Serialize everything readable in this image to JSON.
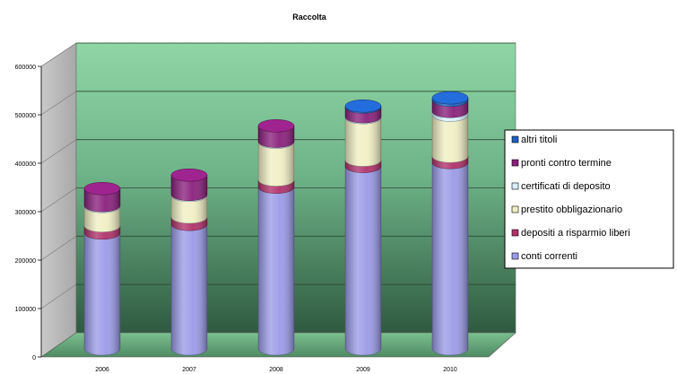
{
  "chart_data": {
    "type": "bar",
    "stacked": true,
    "style": "3d-cylinder",
    "title": "Raccolta",
    "xlabel": "",
    "ylabel": "",
    "ylim": [
      0,
      600000
    ],
    "yticks": [
      0,
      100000,
      200000,
      300000,
      400000,
      500000,
      600000
    ],
    "grid": true,
    "legend_position": "right",
    "categories": [
      "2006",
      "2007",
      "2008",
      "2009",
      "2010"
    ],
    "series": [
      {
        "name": "conti correnti",
        "color": "#9b9be8",
        "values": [
          240000,
          258000,
          335000,
          378000,
          386000
        ]
      },
      {
        "name": "depositi a risparmio liberi",
        "color": "#b0306a",
        "values": [
          15000,
          15000,
          15000,
          13000,
          13000
        ]
      },
      {
        "name": "prestito obbligazionario",
        "color": "#f0efc4",
        "values": [
          40000,
          45000,
          78000,
          88000,
          85000
        ]
      },
      {
        "name": "certificati di deposito",
        "color": "#d8f0ff",
        "values": [
          2000,
          2000,
          2000,
          2000,
          8000
        ]
      },
      {
        "name": "pronti contro termine",
        "color": "#8a1f7c",
        "values": [
          35000,
          40000,
          32000,
          20000,
          23000
        ]
      },
      {
        "name": "altri titoli",
        "color": "#1f5fbf",
        "values": [
          0,
          0,
          0,
          2000,
          5000
        ]
      }
    ]
  }
}
